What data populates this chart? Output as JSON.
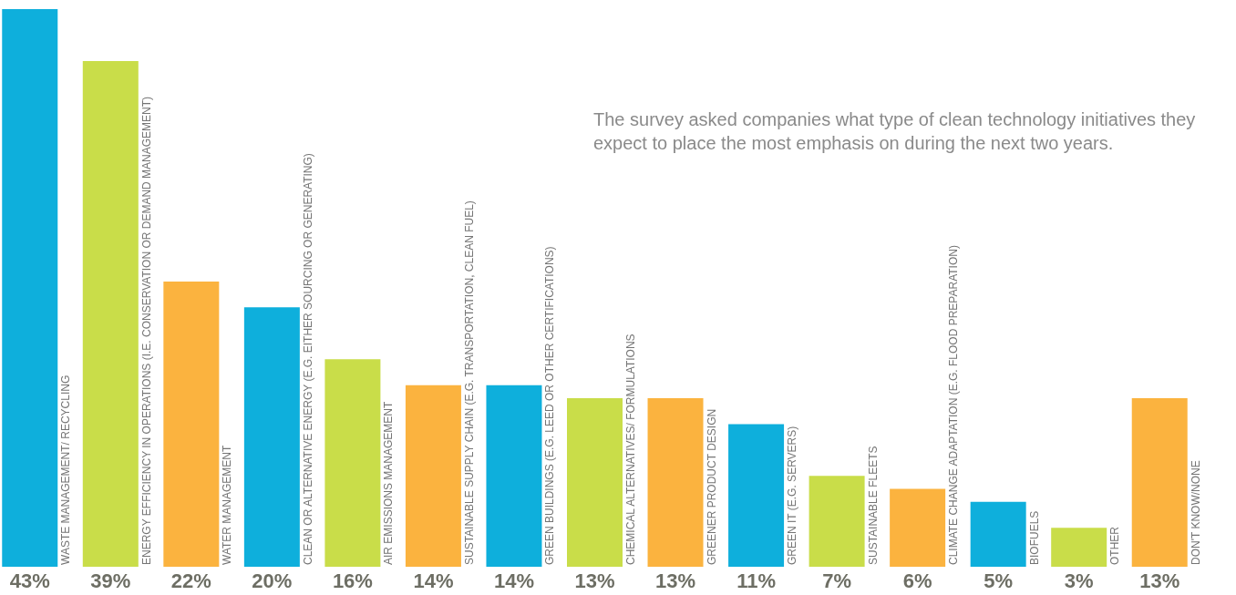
{
  "chart_data": {
    "type": "bar",
    "annotations": [
      "The survey asked companies what type of clean technology initiatives they expect to place the most emphasis on during the next two years."
    ],
    "categories": [
      "WASTE MANAGEMENT/ RECYCLING",
      "ENERGY EFFICIENCY IN OPERATIONS (I.E. CONSERVATION OR DEMAND MANAGEMENT)",
      "WATER MANAGEMENT",
      "CLEAN OR ALTERNATIVE ENERGY (E.G. EITHER SOURCING OR GENERATING)",
      "AIR EMISSIONS MANAGEMENT",
      "SUSTAINABLE SUPPLY CHAIN (E.G. TRANSPORTATION, CLEAN FUEL)",
      "GREEN BUILDINGS (E.G. LEED OR OTHER CERTIFICATIONS)",
      "CHEMICAL ALTERNATIVES/ FORMULATIONS",
      "GREENER PRODUCT DESIGN",
      "GREEN IT (E.G. SERVERS)",
      "SUSTAINABLE FLEETS",
      "CLIMATE CHANGE ADAPTATION (E.G. FLOOD PREPARATION)",
      "BIOFUELS",
      "OTHER",
      "DON'T KNOW/NONE"
    ],
    "values": [
      43,
      39,
      22,
      20,
      16,
      14,
      14,
      13,
      13,
      11,
      7,
      6,
      5,
      3,
      13
    ],
    "value_labels": [
      "43%",
      "39%",
      "22%",
      "20%",
      "16%",
      "14%",
      "14%",
      "13%",
      "13%",
      "11%",
      "7%",
      "6%",
      "5%",
      "3%",
      "13%"
    ],
    "colors": [
      "#0eafdc",
      "#c9dd49",
      "#fbb33f",
      "#0eafdc",
      "#c9dd49",
      "#fbb33f",
      "#0eafdc",
      "#c9dd49",
      "#fbb33f",
      "#0eafdc",
      "#c9dd49",
      "#fbb33f",
      "#0eafdc",
      "#c9dd49",
      "#fbb33f"
    ]
  }
}
